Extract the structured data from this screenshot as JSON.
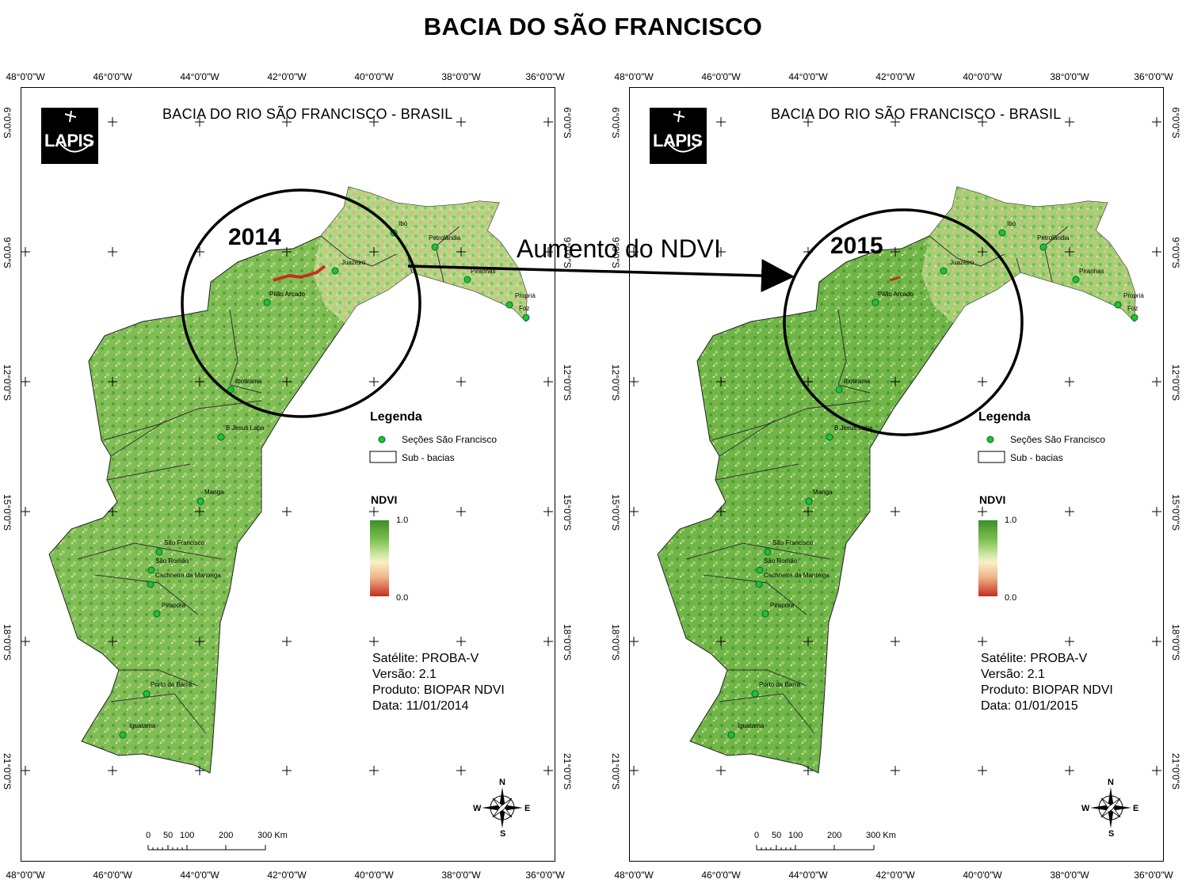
{
  "title": "BACIA DO SÃO FRANCISCO",
  "lon_labels": [
    "48°0'0\"W",
    "46°0'0\"W",
    "44°0'0\"W",
    "42°0'0\"W",
    "40°0'0\"W",
    "38°0'0\"W",
    "36°0'0\"W"
  ],
  "lat_labels": [
    "6°0'0\"S",
    "9°0'0\"S",
    "12°0'0\"S",
    "15°0'0\"S",
    "18°0'0\"S",
    "21°0'0\"S"
  ],
  "annotation": {
    "arrow_text": "Aumento do NDVI",
    "year_left": "2014",
    "year_right": "2015"
  },
  "panels": [
    {
      "map_title": "BACIA DO RIO SÃO FRANCISCO - BRASIL",
      "logo_text": "LAPIS",
      "legend": {
        "title": "Legenda",
        "point_label": "Seções São Francisco",
        "polygon_label": "Sub - bacias",
        "ndvi_title": "NDVI",
        "ndvi_max": "1.0",
        "ndvi_min": "0.0"
      },
      "info": {
        "satellite": "Satélite: PROBA-V",
        "version": "Versão: 2.1",
        "product": "Produto: BIOPAR NDVI",
        "date": "Data: 11/01/2014"
      },
      "scale": {
        "labels": [
          "0",
          "50",
          "100",
          "200",
          "300 Km"
        ]
      },
      "compass": {
        "n": "N",
        "s": "S",
        "e": "E",
        "w": "W"
      }
    },
    {
      "map_title": "BACIA DO RIO SÃO FRANCISCO - BRASIL",
      "logo_text": "LAPIS",
      "legend": {
        "title": "Legenda",
        "point_label": "Seções São Francisco",
        "polygon_label": "Sub - bacias",
        "ndvi_title": "NDVI",
        "ndvi_max": "1.0",
        "ndvi_min": "0.0"
      },
      "info": {
        "satellite": "Satélite: PROBA-V",
        "version": "Versão: 2.1",
        "product": "Produto: BIOPAR NDVI",
        "date": "Data: 01/01/2015"
      },
      "scale": {
        "labels": [
          "0",
          "50",
          "100",
          "200",
          "300 Km"
        ]
      },
      "compass": {
        "n": "N",
        "s": "S",
        "e": "E",
        "w": "W"
      }
    }
  ],
  "stations": [
    "Ibó",
    "Petrolândia",
    "Juazeiro",
    "Piranhas",
    "Propriá",
    "Foz",
    "Pilão Arcado",
    "Ibotirama",
    "B.Jesus Lapa",
    "Manga",
    "São Francisco",
    "São Romão",
    "Cachoeira da Manteiga",
    "Pirapora",
    "Porto da Barra",
    "Iguatama"
  ],
  "colors": {
    "vegetation_high": "#4f9a35",
    "vegetation_mid": "#8cc55e",
    "vegetation_low": "#f3e7b6",
    "bare": "#e39a6c",
    "station": "#22c22a"
  }
}
